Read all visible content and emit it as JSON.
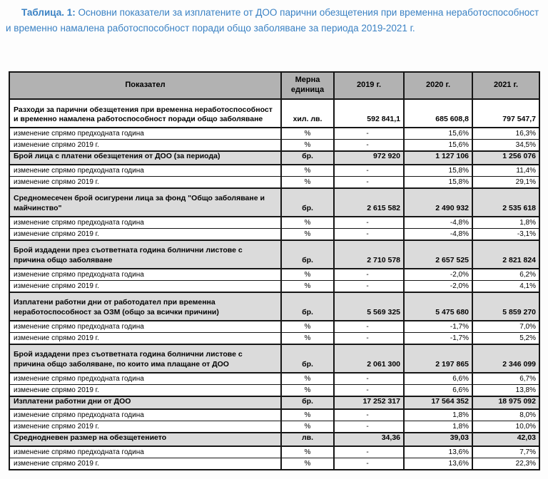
{
  "title": {
    "prefix": "Таблица. 1:",
    "text": " Основни показатели за изплатените от ДОО парични обезщетения при временна неработоспособност и временно намалена работоспособност поради общо заболяване за периода 2019-2021 г."
  },
  "table": {
    "headers": [
      "Показател",
      "Мерна единица",
      "2019 г.",
      "2020 г.",
      "2021 г."
    ],
    "rows": [
      {
        "type": "section",
        "shaded": false,
        "label": "Разходи за парични обезщетения при временна неработоспособност и временно намалена работоспособност поради общо заболяване",
        "unit": "хил. лв.",
        "v2019": "592 841,1",
        "v2020": "685 608,8",
        "v2021": "797 547,7"
      },
      {
        "type": "change",
        "shaded": false,
        "label": "изменение спрямо предходната година",
        "unit": "%",
        "v2019": "-",
        "v2020": "15,6%",
        "v2021": "16,3%"
      },
      {
        "type": "change",
        "shaded": false,
        "label": "изменение спрямо 2019 г.",
        "unit": "%",
        "v2019": "-",
        "v2020": "15,6%",
        "v2021": "34,5%"
      },
      {
        "type": "section",
        "shaded": true,
        "label": "Брой лица с платени обезщетения от ДОО (за периода)",
        "unit": "бр.",
        "v2019": "972 920",
        "v2020": "1 127 106",
        "v2021": "1 256 076"
      },
      {
        "type": "change",
        "shaded": false,
        "label": "изменение спрямо предходната година",
        "unit": "%",
        "v2019": "-",
        "v2020": "15,8%",
        "v2021": "11,4%"
      },
      {
        "type": "change",
        "shaded": false,
        "label": "изменение спрямо 2019 г.",
        "unit": "%",
        "v2019": "-",
        "v2020": "15,8%",
        "v2021": "29,1%"
      },
      {
        "type": "section",
        "shaded": true,
        "label": "Средномесечен брой осигурени лица за фонд \"Общо заболяване и майчинство\"",
        "unit": "бр.",
        "v2019": "2 615 582",
        "v2020": "2 490 932",
        "v2021": "2 535 618"
      },
      {
        "type": "change",
        "shaded": false,
        "label": "изменение спрямо предходната година",
        "unit": "%",
        "v2019": "-",
        "v2020": "-4,8%",
        "v2021": "1,8%"
      },
      {
        "type": "change",
        "shaded": false,
        "label": "изменение спрямо 2019 г.",
        "unit": "%",
        "v2019": "-",
        "v2020": "-4,8%",
        "v2021": "-3,1%"
      },
      {
        "type": "section",
        "shaded": true,
        "label": "Брой издадени през съответната година болнични листове с причина общо заболяване",
        "unit": "бр.",
        "v2019": "2 710 578",
        "v2020": "2 657 525",
        "v2021": "2 821 824"
      },
      {
        "type": "change",
        "shaded": false,
        "label": "изменение спрямо предходната година",
        "unit": "%",
        "v2019": "-",
        "v2020": "-2,0%",
        "v2021": "6,2%"
      },
      {
        "type": "change",
        "shaded": false,
        "label": "изменение спрямо 2019 г.",
        "unit": "%",
        "v2019": "-",
        "v2020": "-2,0%",
        "v2021": "4,1%"
      },
      {
        "type": "section",
        "shaded": true,
        "label": "Изплатени работни дни от работодател при временна неработоспособност за ОЗМ (общо за всички причини)",
        "unit": "бр.",
        "v2019": "5 569 325",
        "v2020": "5 475 680",
        "v2021": "5 859 270"
      },
      {
        "type": "change",
        "shaded": false,
        "label": "изменение спрямо предходната година",
        "unit": "%",
        "v2019": "-",
        "v2020": "-1,7%",
        "v2021": "7,0%"
      },
      {
        "type": "change",
        "shaded": false,
        "label": "изменение спрямо 2019 г.",
        "unit": "%",
        "v2019": "-",
        "v2020": "-1,7%",
        "v2021": "5,2%"
      },
      {
        "type": "section",
        "shaded": true,
        "label": "Брой издадени през съответната година болнични листове с причина общо заболяване, по които има плащане от ДОО",
        "unit": "бр.",
        "v2019": "2 061 300",
        "v2020": "2 197 865",
        "v2021": "2 346 099"
      },
      {
        "type": "change",
        "shaded": false,
        "label": "изменение спрямо предходната година",
        "unit": "%",
        "v2019": "-",
        "v2020": "6,6%",
        "v2021": "6,7%"
      },
      {
        "type": "change",
        "shaded": false,
        "label": "изменение спрямо 2019 г.",
        "unit": "%",
        "v2019": "-",
        "v2020": "6,6%",
        "v2021": "13,8%"
      },
      {
        "type": "section",
        "shaded": true,
        "label": "Изплатени работни дни от ДОО",
        "unit": "бр.",
        "v2019": "17 252 317",
        "v2020": "17 564 352",
        "v2021": "18 975 092"
      },
      {
        "type": "change",
        "shaded": false,
        "label": "изменение спрямо предходната година",
        "unit": "%",
        "v2019": "-",
        "v2020": "1,8%",
        "v2021": "8,0%"
      },
      {
        "type": "change",
        "shaded": false,
        "label": "изменение спрямо 2019 г.",
        "unit": "%",
        "v2019": "-",
        "v2020": "1,8%",
        "v2021": "10,0%"
      },
      {
        "type": "section",
        "shaded": true,
        "label": "Среднодневен размер на обезщетението",
        "unit": "лв.",
        "v2019": "34,36",
        "v2020": "39,03",
        "v2021": "42,03"
      },
      {
        "type": "change",
        "shaded": false,
        "label": "изменение спрямо предходната година",
        "unit": "%",
        "v2019": "-",
        "v2020": "13,6%",
        "v2021": "7,7%"
      },
      {
        "type": "change",
        "shaded": false,
        "label": "изменение спрямо 2019 г.",
        "unit": "%",
        "v2019": "-",
        "v2020": "13,6%",
        "v2021": "22,3%"
      }
    ]
  }
}
